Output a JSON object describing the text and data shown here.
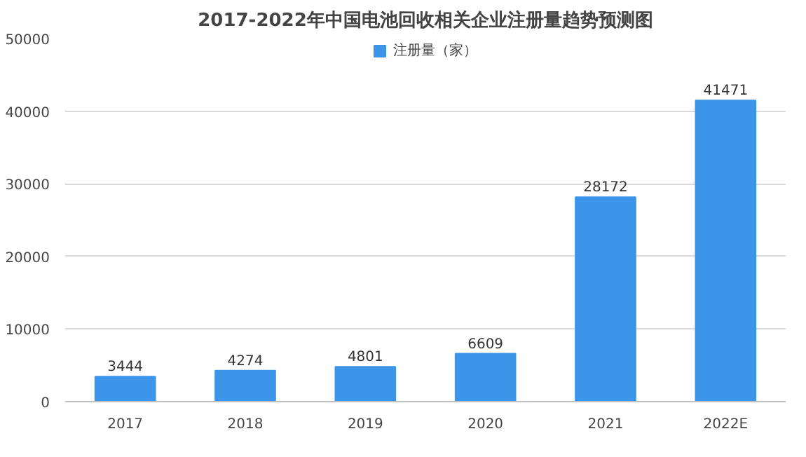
{
  "chart_data": {
    "type": "bar",
    "title": "2017-2022年中国电池回收相关企业注册量趋势预测图",
    "categories": [
      "2017",
      "2018",
      "2019",
      "2020",
      "2021",
      "2022E"
    ],
    "series": [
      {
        "name": "注册量（家）",
        "color": "#3d95ea",
        "values": [
          3444,
          4274,
          4801,
          6609,
          28172,
          41471
        ]
      }
    ],
    "ylim": [
      0,
      50000
    ],
    "yticks": [
      0,
      10000,
      20000,
      30000,
      40000,
      50000
    ],
    "grid": "y",
    "legend": "top",
    "data_labels": true
  }
}
